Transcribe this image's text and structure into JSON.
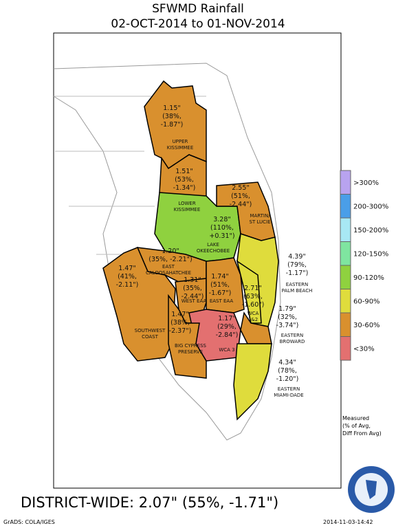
{
  "title": "SFWMD Rainfall",
  "subtitle": "02-OCT-2014 to 01-NOV-2014",
  "regions": [
    {
      "name": [
        "UPPER",
        "KISSIMMEE"
      ],
      "color": "#d9902e",
      "lines": [
        "1.15\"",
        "(38%,",
        "-1.87\")"
      ]
    },
    {
      "name": [
        "LOWER",
        "KISSIMMEE"
      ],
      "color": "#d9902e",
      "lines": [
        "1.51\"",
        "(53%,",
        "-1.34\")"
      ]
    },
    {
      "name": [
        "LAKE",
        "OKEECHOBEE"
      ],
      "color": "#8fd13f",
      "lines": [
        "3.28\"",
        "(110%,",
        "+0.31\")"
      ]
    },
    {
      "name": [
        "MARTIN/",
        "ST LUCIE"
      ],
      "color": "#d9902e",
      "lines": [
        "2.55\"",
        "(51%,",
        "-2.44\")"
      ]
    },
    {
      "name": [
        "EASTERN",
        "PALM BEACH"
      ],
      "color": "#dfdc3c",
      "lines": [
        "4.39\"",
        "(79%,",
        "-1.17\")"
      ]
    },
    {
      "name": [
        "EAST",
        "CALOOSAHATCHEE"
      ],
      "color": "#d9902e",
      "lines": [
        "1.20\"",
        "(35%,  -2.21\")"
      ]
    },
    {
      "name": [
        "SOUTHWEST",
        "COAST"
      ],
      "color": "#d9902e",
      "lines": [
        "1.47\"",
        "(41%,",
        "-2.11\")"
      ]
    },
    {
      "name": [
        "WEST EAA"
      ],
      "color": "#d9902e",
      "lines": [
        "1.31\"",
        "(35%,",
        "-2.44\")"
      ]
    },
    {
      "name": [
        "EAST EAA"
      ],
      "color": "#d9902e",
      "lines": [
        "1.74\"",
        "(51%,",
        "-1.67\")"
      ]
    },
    {
      "name": [
        "WCA",
        "1&2"
      ],
      "color": "#dfdc3c",
      "lines": [
        "2.71\"",
        "(63%,",
        "-1.60\")"
      ]
    },
    {
      "name": [
        "EASTERN",
        "BROWARD"
      ],
      "color": "#d9902e",
      "lines": [
        "1.79\"",
        "(32%,",
        "-3.74\")"
      ]
    },
    {
      "name": [
        "WCA 3"
      ],
      "color": "#e37070",
      "lines": [
        "1.17\"",
        "(29%,",
        "-2.84\")"
      ]
    },
    {
      "name": [
        "BIG CYPRESS",
        "PRESERVE"
      ],
      "color": "#d9902e",
      "lines": [
        "1.47\"",
        "(38%,",
        "-2.37\")"
      ]
    },
    {
      "name": [
        "EASTERN",
        "MIAMI-DADE"
      ],
      "color": "#dfdc3c",
      "lines": [
        "4.34\"",
        "(78%,",
        "-1.20\")"
      ]
    }
  ],
  "legend": [
    {
      "label": ">300%",
      "color": "#b8a3ef"
    },
    {
      "label": "200-300%",
      "color": "#4a9ee8"
    },
    {
      "label": "150-200%",
      "color": "#a8e8f4"
    },
    {
      "label": "120-150%",
      "color": "#7fe5a0"
    },
    {
      "label": "90-120%",
      "color": "#8fd13f"
    },
    {
      "label": "60-90%",
      "color": "#dfdc3c"
    },
    {
      "label": "30-60%",
      "color": "#d9902e"
    },
    {
      "label": "<30%",
      "color": "#e37070"
    }
  ],
  "legend_note": [
    "Measured",
    "(% of Avg,",
    "Diff From Avg)"
  ],
  "district_wide": "DISTRICT-WIDE: 2.07\"  (55%, -1.71\")",
  "credit": "GrADS: COLA/IGES",
  "timestamp": "2014-11-03-14:42"
}
